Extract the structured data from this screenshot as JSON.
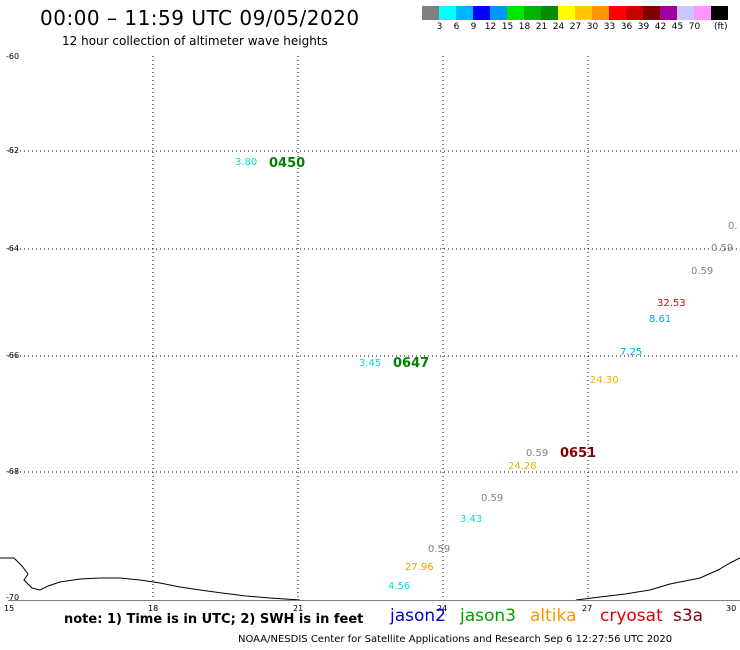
{
  "header": {
    "title": "00:00 – 11:59 UTC 09/05/2020",
    "subtitle": "12 hour collection of altimeter wave heights"
  },
  "legend": {
    "units": "(ft)",
    "colors": [
      "#808080",
      "#00ffff",
      "#00b4ff",
      "#0000ff",
      "#0096ff",
      "#00e600",
      "#00b400",
      "#008c00",
      "#ffff00",
      "#ffc800",
      "#ff9600",
      "#ff0000",
      "#c80000",
      "#800000",
      "#a000a0",
      "#c8c8ff",
      "#ff96ff",
      "#000000"
    ],
    "labels": [
      "3",
      "6",
      "9",
      "12",
      "15",
      "18",
      "21",
      "24",
      "27",
      "30",
      "33",
      "36",
      "39",
      "42",
      "45",
      "70"
    ]
  },
  "axes": {
    "lat_labels": [
      "-60",
      "-62",
      "-64",
      "-66",
      "-68",
      "-70"
    ],
    "lon_labels": [
      "15",
      "18",
      "21",
      "24",
      "27",
      "30"
    ]
  },
  "observations": [
    {
      "text": "3.80",
      "color": "#00e0e0"
    },
    {
      "text": "3.45",
      "color": "#00e0e0"
    },
    {
      "text": "0.59",
      "color": "#808080"
    },
    {
      "text": "0.59",
      "color": "#808080"
    },
    {
      "text": "32.53",
      "color": "#e00000"
    },
    {
      "text": "8.61",
      "color": "#00a8e8"
    },
    {
      "text": "7.25",
      "color": "#00a8e8"
    },
    {
      "text": "24.30",
      "color": "#f0b000"
    },
    {
      "text": "0.59",
      "color": "#808080"
    },
    {
      "text": "24.28",
      "color": "#f0b000"
    },
    {
      "text": "0.59",
      "color": "#808080"
    },
    {
      "text": "3.43",
      "color": "#00e0e0"
    },
    {
      "text": "0.59",
      "color": "#808080"
    },
    {
      "text": "27.96",
      "color": "#f0a000"
    },
    {
      "text": "4.56",
      "color": "#00e0e0"
    },
    {
      "text": "0.",
      "color": "#808080"
    }
  ],
  "pass_times": [
    {
      "text": "0450",
      "color": "#008000"
    },
    {
      "text": "0647",
      "color": "#008000"
    },
    {
      "text": "0651",
      "color": "#800000"
    }
  ],
  "note": "note: 1) Time is in UTC; 2) SWH is in feet",
  "satellites": [
    {
      "name": "jason2",
      "color": "#0000c8"
    },
    {
      "name": "jason3",
      "color": "#00a000"
    },
    {
      "name": "altika",
      "color": "#ff9600"
    },
    {
      "name": "cryosat",
      "color": "#e00000"
    },
    {
      "name": "s3a",
      "color": "#800000"
    }
  ],
  "footer": "NOAA/NESDIS Center for Satellite Applications and Research    Sep  6 12:27:56 UTC 2020"
}
